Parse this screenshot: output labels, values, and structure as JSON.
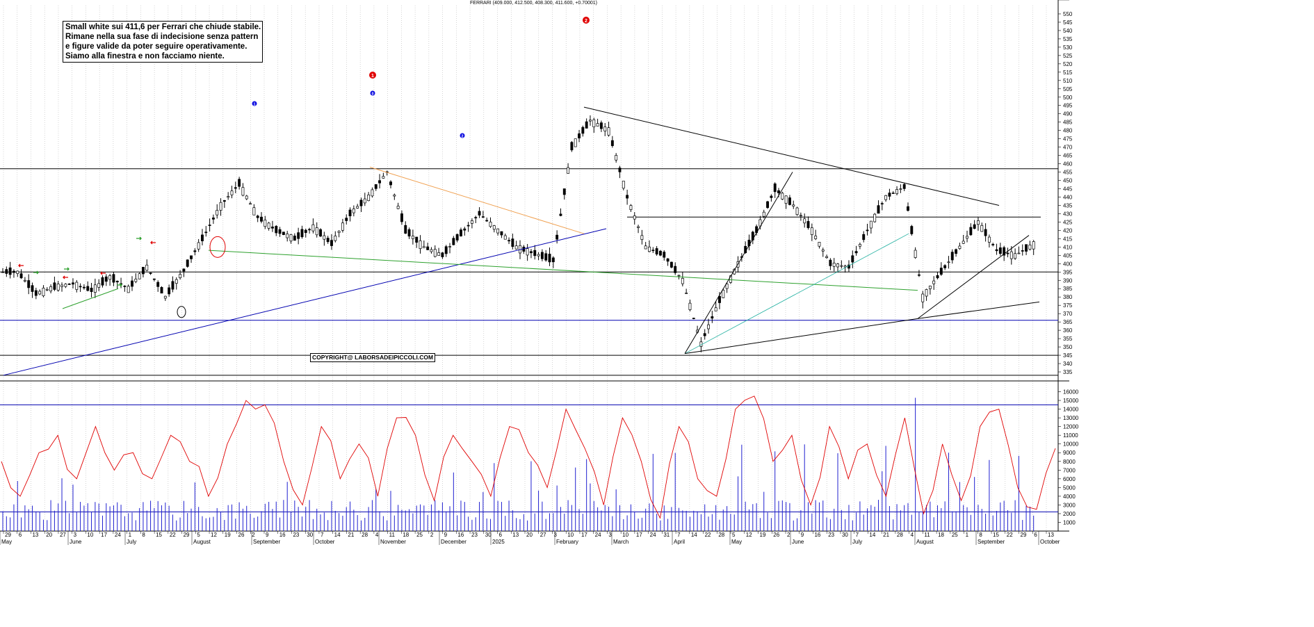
{
  "header": {
    "title": "FERRARI (409.000, 412.500, 408.300, 411.600, +0.70001)"
  },
  "annotation": {
    "lines": [
      "Small white sui 411,6 per Ferrari che chiude stabile.",
      "Rimane nella sua fase di indecisione senza pattern",
      "e figure valide da poter seguire operativamente.",
      "Siamo alla finestra e non facciamo niente."
    ]
  },
  "copyright": "COPYRIGHT@ LABORSADEIPICCOLI.COM",
  "markers": {
    "red": [
      "1",
      "2"
    ],
    "blue": [
      "1",
      "0",
      "2"
    ]
  },
  "colors": {
    "candles": "#000000",
    "grid": "#b8b8b8",
    "support_lines": "#0000b0",
    "green_line": "#2ca02c",
    "orange_line": "#f0a050",
    "cyan_line": "#20b0a0",
    "volume": "#2020d0",
    "oscillator": "#e00000",
    "marker_red": "#e00000",
    "marker_blue": "#1010e0"
  },
  "chart_data": [
    {
      "type": "candlestick",
      "title": "FERRARI (409.000, 412.500, 408.300, 411.600, +0.70001)",
      "ylim": [
        330,
        555
      ],
      "y_ticks": [
        335,
        340,
        345,
        350,
        355,
        360,
        365,
        370,
        375,
        380,
        385,
        390,
        395,
        400,
        405,
        410,
        415,
        420,
        425,
        430,
        435,
        440,
        445,
        450,
        455,
        460,
        465,
        470,
        475,
        480,
        485,
        490,
        495,
        500,
        505,
        510,
        515,
        520,
        525,
        530,
        535,
        540,
        545,
        550
      ],
      "horizontal_levels": [
        457,
        395,
        366,
        345,
        333
      ],
      "last_close": 411.6,
      "approx_closes_weekly": [
        395,
        382,
        386,
        388,
        384,
        392,
        385,
        398,
        380,
        396,
        415,
        435,
        448,
        428,
        420,
        415,
        422,
        412,
        430,
        440,
        455,
        420,
        410,
        405,
        418,
        430,
        420,
        410,
        406,
        402,
        470,
        486,
        480,
        440,
        410,
        405,
        390,
        352,
        378,
        400,
        420,
        445,
        435,
        420,
        400,
        398,
        420,
        440,
        446,
        380,
        395,
        410,
        425,
        408,
        405,
        411.6
      ],
      "x_tick_labels": [
        "29",
        "6",
        "13",
        "20",
        "27",
        "3",
        "10",
        "17",
        "24",
        "1",
        "8",
        "15",
        "22",
        "29",
        "5",
        "12",
        "19",
        "26",
        "2",
        "9",
        "16",
        "23",
        "30",
        "7",
        "14",
        "21",
        "28",
        "4",
        "11",
        "18",
        "25",
        "2",
        "9",
        "16",
        "23",
        "30",
        "6",
        "13",
        "20",
        "27",
        "3",
        "10",
        "17",
        "24",
        "3",
        "10",
        "17",
        "24",
        "31",
        "7",
        "14",
        "22",
        "28",
        "5",
        "12",
        "19",
        "26",
        "2",
        "9",
        "16",
        "23",
        "30",
        "7",
        "14",
        "21",
        "28",
        "4",
        "11",
        "18",
        "25",
        "1",
        "8",
        "15",
        "22",
        "29",
        "6",
        "13"
      ],
      "month_labels": [
        "May",
        "June",
        "July",
        "August",
        "September",
        "October",
        "November",
        "December",
        "2025",
        "February",
        "March",
        "April",
        "May",
        "June",
        "July",
        "August",
        "September",
        "October"
      ]
    },
    {
      "type": "bar",
      "series_kind": "volume",
      "ylim": [
        0,
        17000
      ],
      "y_ticks": [
        1000,
        2000,
        3000,
        4000,
        5000,
        6000,
        7000,
        8000,
        9000,
        10000,
        11000,
        12000,
        13000,
        14000,
        15000,
        16000
      ],
      "reference_levels": [
        14500,
        2200
      ],
      "peak": 15300
    },
    {
      "type": "line",
      "series_kind": "oscillator",
      "ylim": [
        0,
        17000
      ],
      "approx_values": [
        8000,
        4000,
        9000,
        11000,
        6000,
        12000,
        7000,
        9000,
        6000,
        11000,
        8000,
        4000,
        10000,
        15000,
        14500,
        8000,
        3000,
        12000,
        6000,
        10000,
        4000,
        13000,
        11000,
        3500,
        11000,
        8000,
        4000,
        12000,
        9000,
        5000,
        14000,
        9500,
        3000,
        13000,
        8000,
        1500,
        12000,
        6000,
        4000,
        14000,
        15500,
        8000,
        11000,
        3000,
        12000,
        6000,
        10000,
        4000,
        13000,
        2000,
        10000,
        3500,
        12000,
        14000,
        5000,
        2500,
        9500
      ]
    }
  ]
}
